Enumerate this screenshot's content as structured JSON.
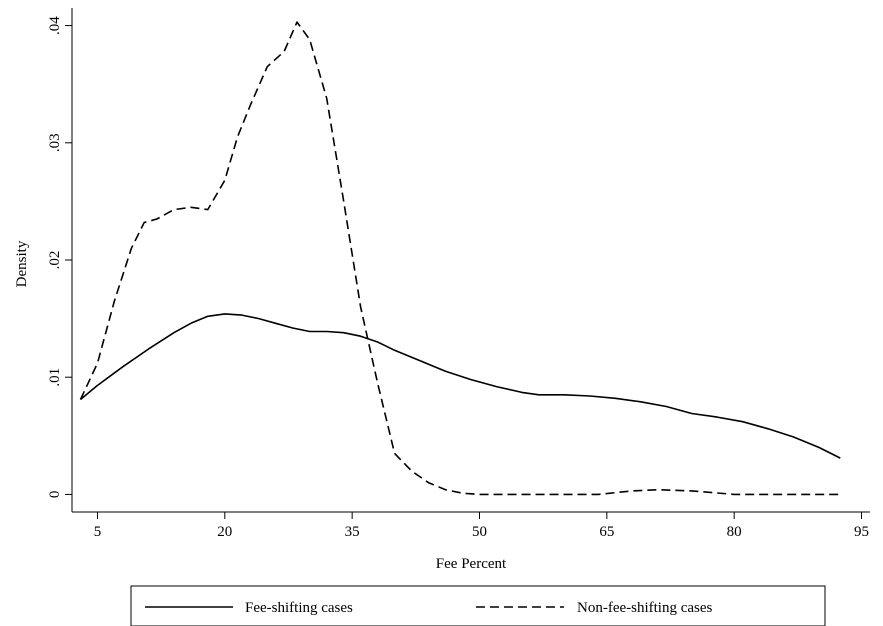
{
  "chart_data": {
    "type": "line",
    "title": "",
    "xlabel": "Fee Percent",
    "ylabel": "Density",
    "xlim": [
      2,
      96
    ],
    "ylim": [
      -0.0015,
      0.0415
    ],
    "xticks": [
      5,
      20,
      35,
      50,
      65,
      80,
      95
    ],
    "xtick_labels": [
      "5",
      "20",
      "35",
      "50",
      "65",
      "80",
      "95"
    ],
    "yticks": [
      0,
      0.01,
      0.02,
      0.03,
      0.04
    ],
    "ytick_labels": [
      "0",
      ".01",
      ".02",
      ".03",
      ".04"
    ],
    "grid": false,
    "legend_position": "bottom",
    "series": [
      {
        "name": "Fee-shifting cases",
        "style": "solid",
        "color": "#000000",
        "x": [
          3,
          5,
          8,
          11,
          14,
          16,
          18,
          20,
          22,
          24,
          26,
          28,
          30,
          32,
          34,
          36,
          38,
          40,
          43,
          46,
          49,
          52,
          55,
          57,
          60,
          63,
          66,
          69,
          72,
          75,
          78,
          81,
          84,
          87,
          90,
          92.5
        ],
        "y": [
          0.0081,
          0.0093,
          0.0109,
          0.0124,
          0.0138,
          0.0146,
          0.0152,
          0.0154,
          0.0153,
          0.015,
          0.0146,
          0.0142,
          0.0139,
          0.0139,
          0.0138,
          0.0135,
          0.013,
          0.0123,
          0.0114,
          0.0105,
          0.0098,
          0.0092,
          0.0087,
          0.0085,
          0.0085,
          0.0084,
          0.0082,
          0.0079,
          0.0075,
          0.0069,
          0.0066,
          0.0062,
          0.0056,
          0.0049,
          0.004,
          0.0031
        ]
      },
      {
        "name": "Non-fee-shifting cases",
        "style": "dashed",
        "color": "#000000",
        "x": [
          3,
          5,
          7,
          9,
          10.5,
          12,
          14,
          16,
          18,
          20,
          21.5,
          23,
          25,
          27,
          28.5,
          30,
          32,
          34,
          36,
          38,
          40,
          42,
          44,
          46,
          48,
          50,
          55,
          60,
          64,
          68,
          71,
          75,
          80,
          85,
          92.5
        ],
        "y": [
          0.0081,
          0.0112,
          0.0165,
          0.021,
          0.0232,
          0.0235,
          0.0243,
          0.0245,
          0.0243,
          0.0268,
          0.0305,
          0.0332,
          0.0365,
          0.0378,
          0.0403,
          0.0388,
          0.0338,
          0.025,
          0.016,
          0.0095,
          0.0035,
          0.002,
          0.001,
          0.0004,
          0.0001,
          0.0,
          0.0,
          0.0,
          0.0,
          0.0003,
          0.0004,
          0.0003,
          0.0,
          0.0,
          0.0
        ]
      }
    ]
  }
}
